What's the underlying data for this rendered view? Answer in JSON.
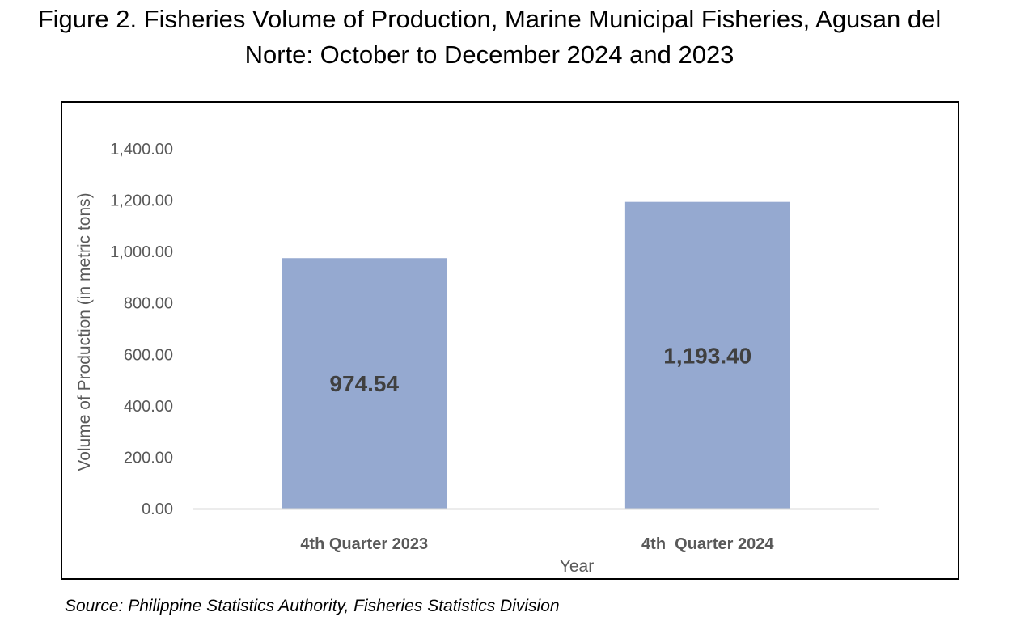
{
  "title_line1": "Figure 2. Fisheries Volume of Production, Marine Municipal Fisheries, Agusan del",
  "title_line2": "Norte: October to December 2024 and 2023",
  "source": "Source: Philippine Statistics Authority, Fisheries Statistics Division",
  "chart_data": {
    "type": "bar",
    "categories": [
      "4th Quarter 2023",
      "4th  Quarter 2024"
    ],
    "values": [
      974.54,
      1193.4
    ],
    "data_labels": [
      "974.54",
      "1,193.40"
    ],
    "xlabel": "Year",
    "ylabel": "Volume of Production (in metric tons)",
    "ylim": [
      0,
      1400
    ],
    "y_ticks": [
      "0.00",
      "200.00",
      "400.00",
      "600.00",
      "800.00",
      "1,000.00",
      "1,200.00",
      "1,400.00"
    ],
    "grid": false,
    "legend": "none",
    "bar_color": "#95A9D0",
    "axis_color": "#D9D9D9",
    "text_color": "#595959",
    "data_label_color": "#404040"
  }
}
